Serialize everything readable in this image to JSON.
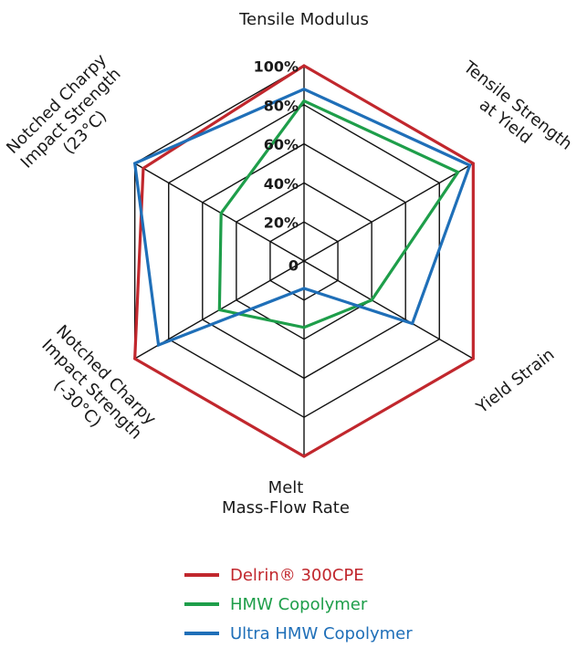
{
  "chart_data": {
    "type": "radar",
    "axes": [
      "Tensile Modulus",
      "Tensile Strength at Yield",
      "Yield Strain",
      "Melt Mass-Flow Rate",
      "Notched Charpy Impact Strength (-30°C)",
      "Notched Charpy Impact Strength (23°C)"
    ],
    "tick_labels": [
      "0",
      "20%",
      "40%",
      "60%",
      "80%",
      "100%"
    ],
    "range": [
      0,
      100
    ],
    "series": [
      {
        "name": "Delrin® 300CPE",
        "color": "#c1272d",
        "values": [
          100,
          100,
          100,
          100,
          100,
          95
        ]
      },
      {
        "name": "HMW Copolymer",
        "color": "#1e9e4a",
        "values": [
          82,
          91,
          40,
          34,
          50,
          49
        ]
      },
      {
        "name": "Ultra HMW Copolymer",
        "color": "#1f6fb8",
        "values": [
          88,
          98,
          64,
          14,
          86,
          100
        ]
      }
    ],
    "grid": true
  },
  "axis_label_lines": [
    [
      "Tensile Modulus"
    ],
    [
      "Tensile Strength",
      "at Yield"
    ],
    [
      "Yield Strain"
    ],
    [
      "Melt",
      "Mass-Flow Rate"
    ],
    [
      "Notched Charpy",
      "Impact Strength",
      "(-30°C)"
    ],
    [
      "Notched Charpy",
      "Impact Strength",
      "(23°C)"
    ]
  ],
  "legend": [
    {
      "label": "Delrin® 300CPE",
      "color": "#c1272d"
    },
    {
      "label": "HMW Copolymer",
      "color": "#1e9e4a"
    },
    {
      "label": "Ultra HMW Copolymer",
      "color": "#1f6fb8"
    }
  ]
}
